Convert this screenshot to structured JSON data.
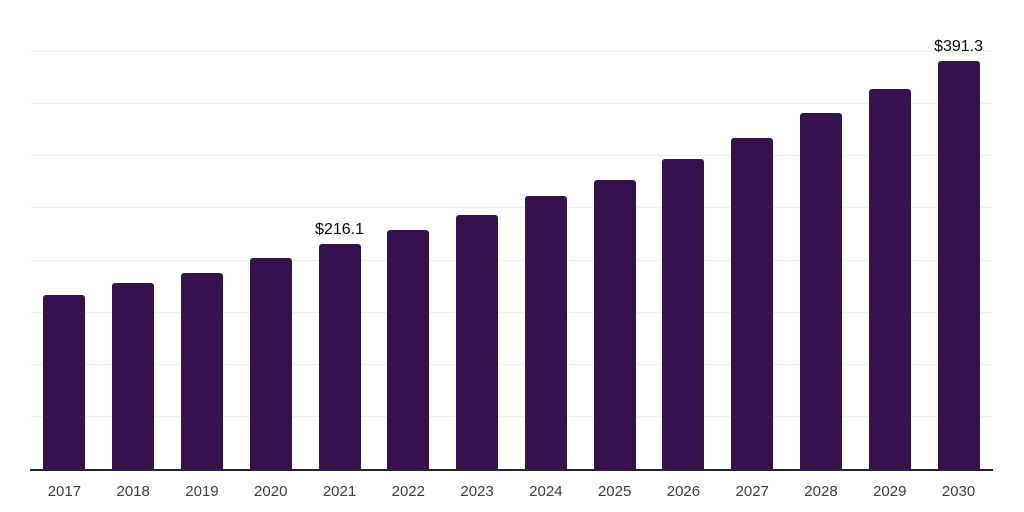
{
  "chart_data": {
    "type": "bar",
    "title": "",
    "xlabel": "",
    "ylabel": "",
    "categories": [
      "2017",
      "2018",
      "2019",
      "2020",
      "2021",
      "2022",
      "2023",
      "2024",
      "2025",
      "2026",
      "2027",
      "2028",
      "2029",
      "2030"
    ],
    "values": [
      167.4,
      178.5,
      188.5,
      202.9,
      216.1,
      229.8,
      244.2,
      262.4,
      277.3,
      297.9,
      317.4,
      341.8,
      364.8,
      391.3
    ],
    "annotations": [
      {
        "category": "2021",
        "text": "$216.1"
      },
      {
        "category": "2030",
        "text": "$391.3"
      }
    ],
    "ylim": [
      0,
      450
    ],
    "gridline_step": 50,
    "grid": true,
    "legend": "none",
    "colors": {
      "bar": "#35124e",
      "axis_line": "#262626",
      "gridline": "#f1f1f1",
      "tick_label": "#3d3d3d",
      "data_label": "#0a0a0a",
      "background": "#ffffff"
    }
  }
}
